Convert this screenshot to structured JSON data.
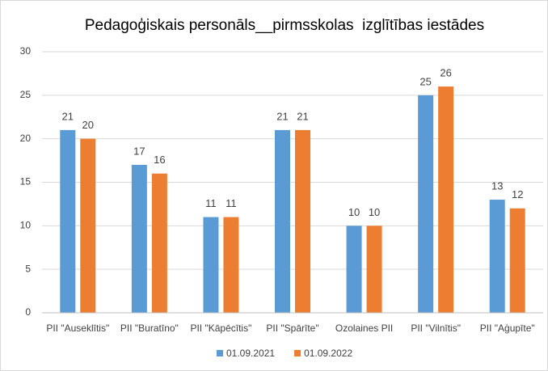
{
  "chart_data": {
    "type": "bar",
    "title": "Pedagoģiskais personāls__pirmsskolas  izglītības iestādes",
    "categories": [
      "PII \"Auseklītis\"",
      "PII \"Buratīno\"",
      "PII \"Kāpēcītis\"",
      "PII \"Spārīte\"",
      "Ozolaines PII",
      "PII \"Vilnītis\"",
      "PII \"Aģupīte\""
    ],
    "series": [
      {
        "name": "01.09.2021",
        "color": "#5b9bd5",
        "values": [
          21,
          17,
          11,
          21,
          10,
          25,
          13
        ]
      },
      {
        "name": "01.09.2022",
        "color": "#ed7d31",
        "values": [
          20,
          16,
          11,
          21,
          10,
          26,
          12
        ]
      }
    ],
    "ylim": [
      0,
      30
    ],
    "yticks": [
      0,
      5,
      10,
      15,
      20,
      25,
      30
    ],
    "grid": true,
    "legend": "bottom"
  }
}
